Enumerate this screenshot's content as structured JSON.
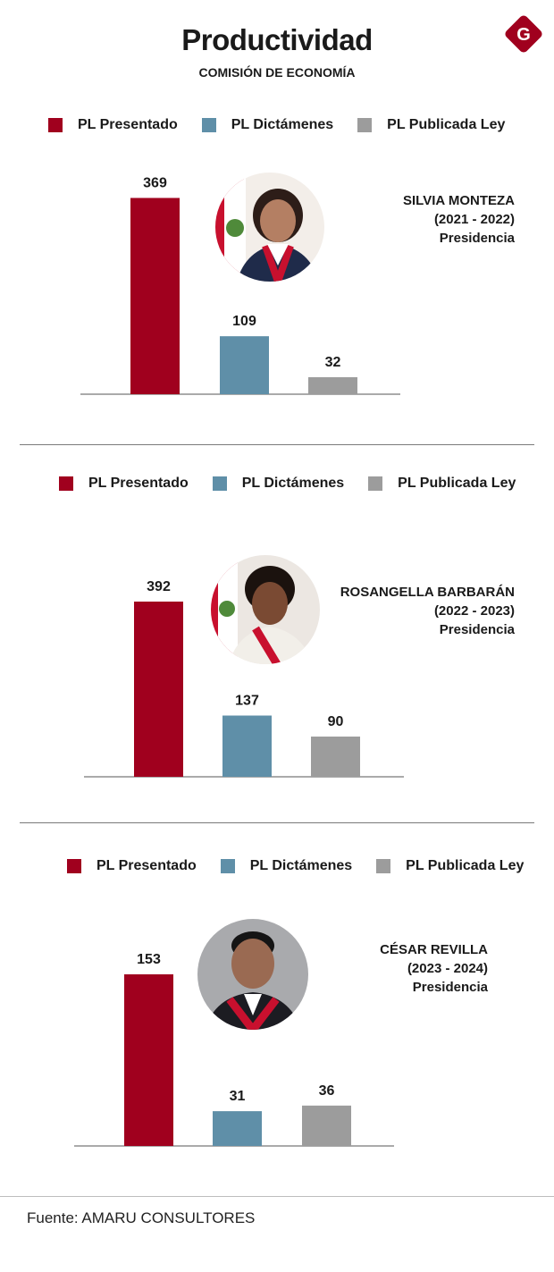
{
  "header": {
    "title": "Productividad",
    "subtitle": "COMISIÓN DE ECONOMÍA",
    "logo_letter": "G",
    "logo_color": "#a0001e"
  },
  "legend": [
    {
      "label": "PL Presentado",
      "color": "#a0001e"
    },
    {
      "label": "PL Dictámenes",
      "color": "#5f8fa8"
    },
    {
      "label": "PL Publicada Ley",
      "color": "#9c9c9c"
    }
  ],
  "panels": [
    {
      "name": "SILVIA MONTEZA",
      "period": "(2021 - 2022)",
      "role": "Presidencia"
    },
    {
      "name": "ROSANGELLA BARBARÁN",
      "period": "(2022 - 2023)",
      "role": "Presidencia"
    },
    {
      "name": "CÉSAR REVILLA",
      "period": "(2023 - 2024)",
      "role": "Presidencia"
    }
  ],
  "chart_data": [
    {
      "type": "bar",
      "categories": [
        "PL Presentado",
        "PL Dictámenes",
        "PL Publicada Ley"
      ],
      "values": [
        369,
        109,
        32
      ],
      "data_labels": [
        "369",
        "109",
        "32"
      ],
      "title": "",
      "xlabel": "",
      "ylabel": ""
    },
    {
      "type": "bar",
      "categories": [
        "PL Presentado",
        "PL Dictámenes",
        "PL Publicada Ley"
      ],
      "values": [
        392,
        137,
        90
      ],
      "data_labels": [
        "392",
        "137",
        "90"
      ],
      "title": "",
      "xlabel": "",
      "ylabel": ""
    },
    {
      "type": "bar",
      "categories": [
        "PL Presentado",
        "PL Dictámenes",
        "PL Publicada Ley"
      ],
      "values": [
        153,
        31,
        36
      ],
      "data_labels": [
        "153",
        "31",
        "36"
      ],
      "title": "",
      "xlabel": "",
      "ylabel": ""
    }
  ],
  "footer": {
    "source": "Fuente: AMARU CONSULTORES"
  }
}
